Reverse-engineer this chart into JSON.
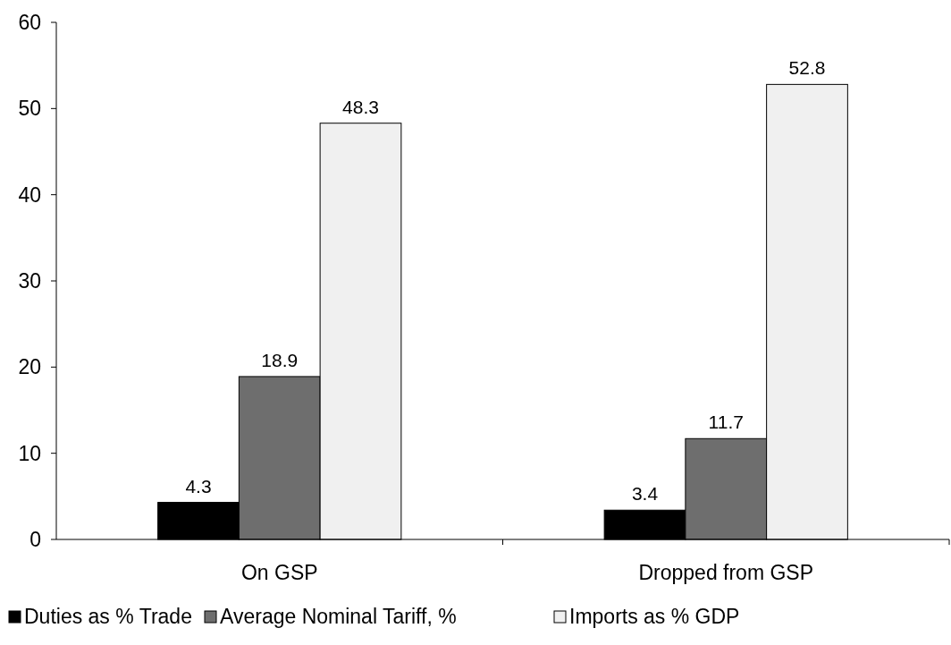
{
  "chart_data": {
    "type": "bar",
    "categories": [
      "On GSP",
      "Dropped from GSP"
    ],
    "series": [
      {
        "name": "Duties as % Trade",
        "color": "#000000",
        "values": [
          4.3,
          3.4
        ]
      },
      {
        "name": "Average Nominal Tariff, %",
        "color": "#6e6e6e",
        "values": [
          18.9,
          11.7
        ]
      },
      {
        "name": "Imports as % GDP",
        "color": "#f0f0f0",
        "values": [
          48.3,
          52.8
        ]
      }
    ],
    "ylim": [
      0,
      60
    ],
    "yticks": [
      0,
      10,
      20,
      30,
      40,
      50,
      60
    ],
    "grid": false,
    "legend": "bottom",
    "data_labels": true
  }
}
